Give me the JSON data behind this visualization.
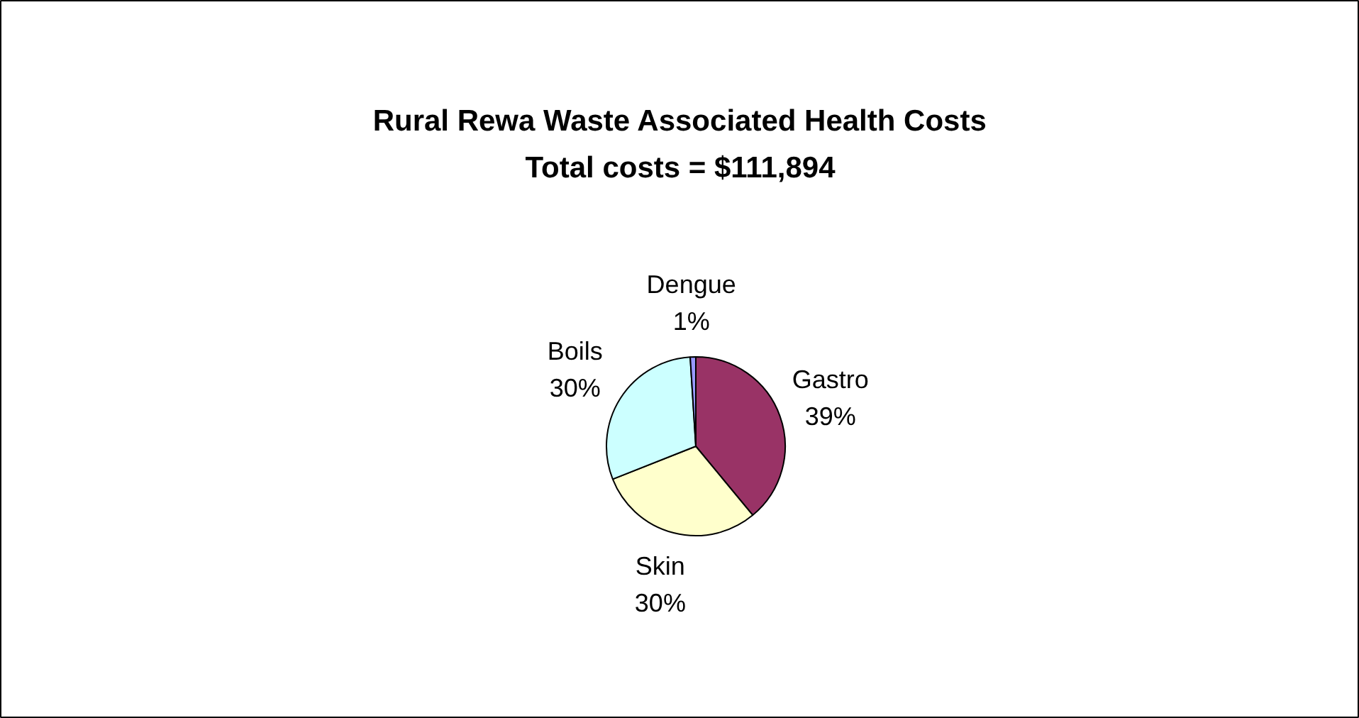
{
  "chart_data": {
    "type": "pie",
    "title": "Rural Rewa Waste Associated Health Costs",
    "subtitle": "Total costs = $111,894",
    "categories": [
      "Gastro",
      "Skin",
      "Boils",
      "Dengue"
    ],
    "values": [
      39,
      30,
      30,
      1
    ],
    "value_labels": [
      "39%",
      "30%",
      "30%",
      "1%"
    ],
    "colors": [
      "#993366",
      "#ffffcc",
      "#ccffff",
      "#9999ff"
    ]
  }
}
